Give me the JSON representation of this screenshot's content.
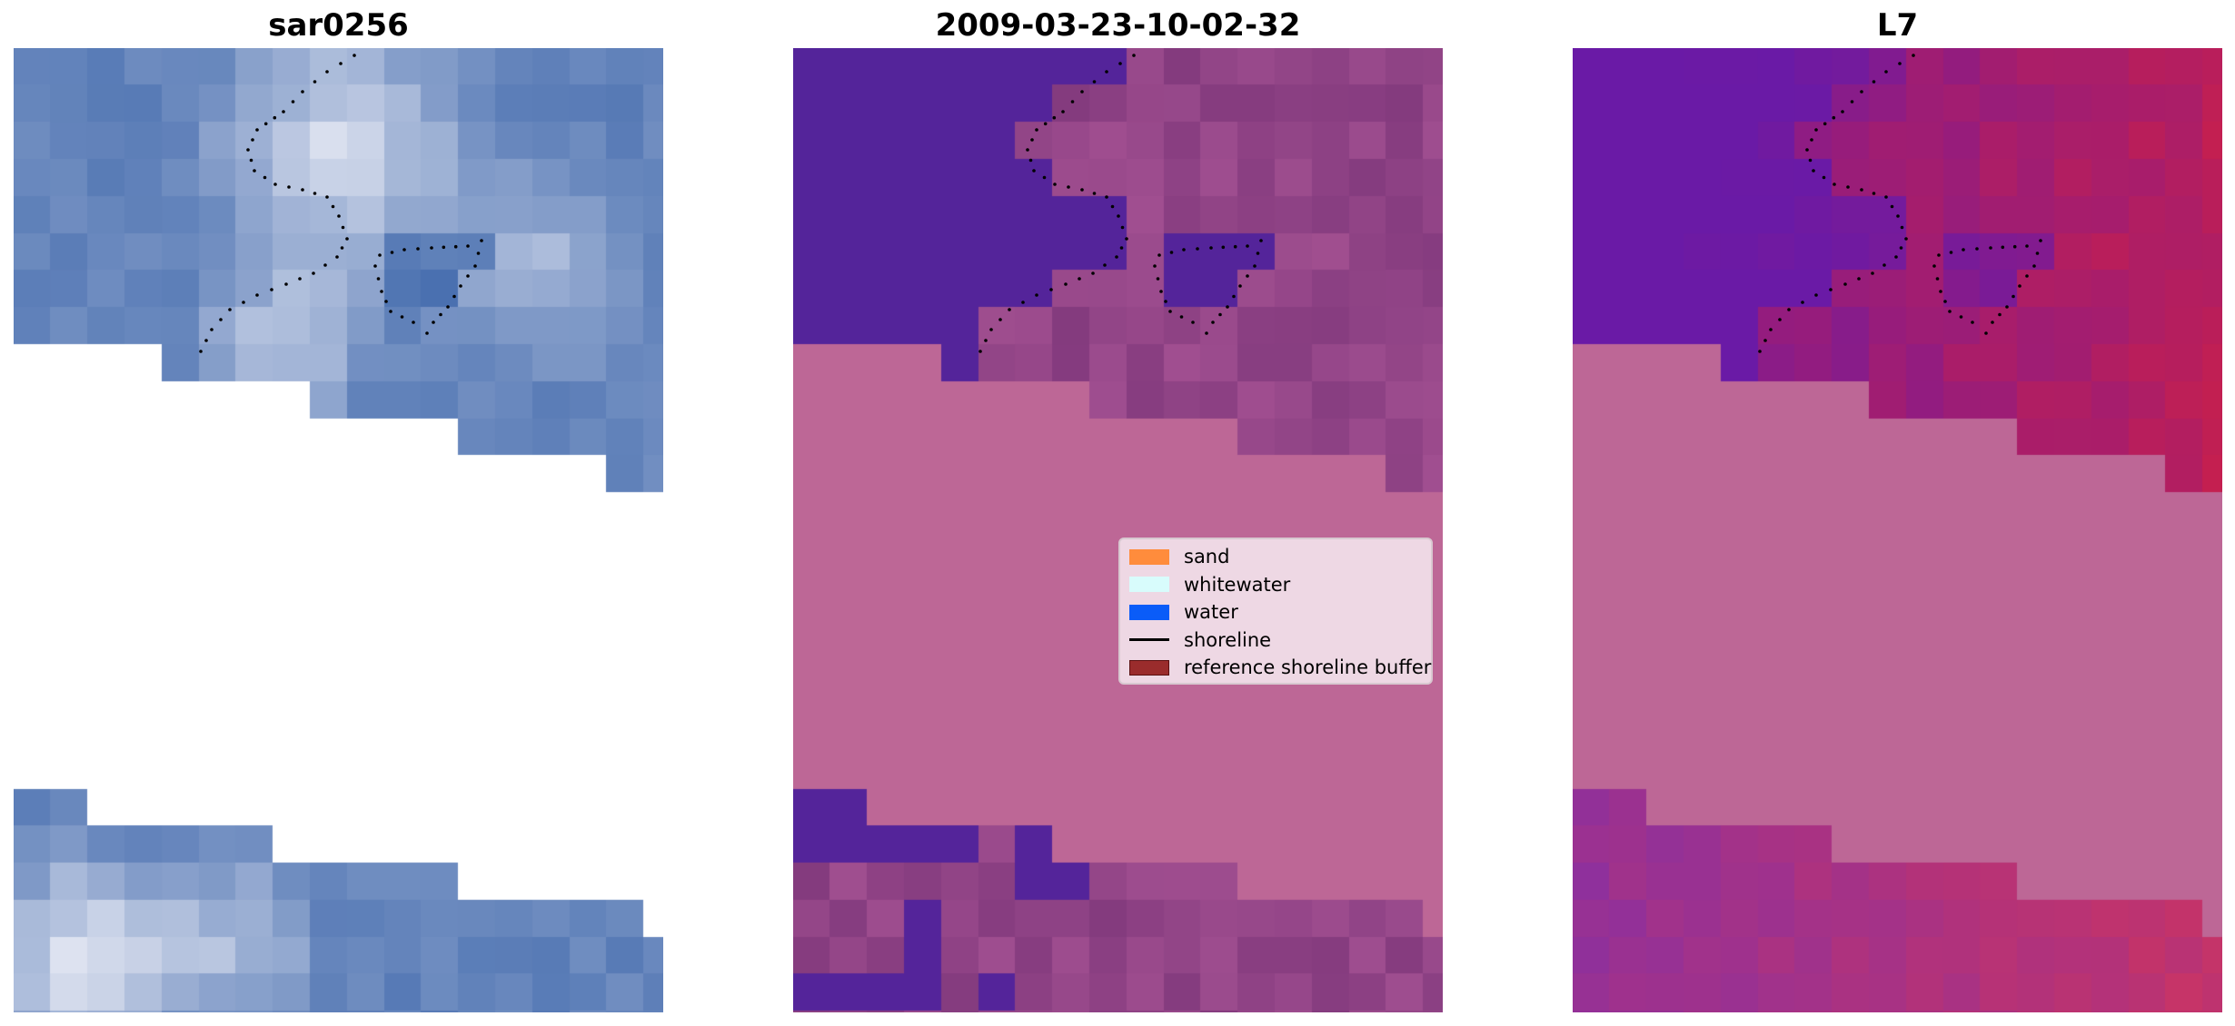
{
  "panels": [
    {
      "id": "rgb",
      "title": "sar0256"
    },
    {
      "id": "classified",
      "title": "2009-03-23-10-02-32"
    },
    {
      "id": "index",
      "title": "L7"
    }
  ],
  "legend": {
    "items": [
      {
        "label": "sand",
        "color": "#ff8c3c",
        "kind": "patch"
      },
      {
        "label": "whitewater",
        "color": "#d8fcfc",
        "kind": "patch"
      },
      {
        "label": "water",
        "color": "#0a5cf8",
        "kind": "patch"
      },
      {
        "label": "shoreline",
        "color": "#000000",
        "kind": "line"
      },
      {
        "label": "reference shoreline buffer",
        "color": "#9a2c2c",
        "kind": "patch"
      }
    ]
  },
  "colors": {
    "rgb_water": "#4a70b0",
    "rgb_bright": "#e2e6f2",
    "nodata_mask": "#bd6796",
    "class_water": "#54249a",
    "class_land": "#7a3478",
    "index_low": "#6a1aa6",
    "index_high": "#c51f4f",
    "shoreline": "#000000"
  }
}
